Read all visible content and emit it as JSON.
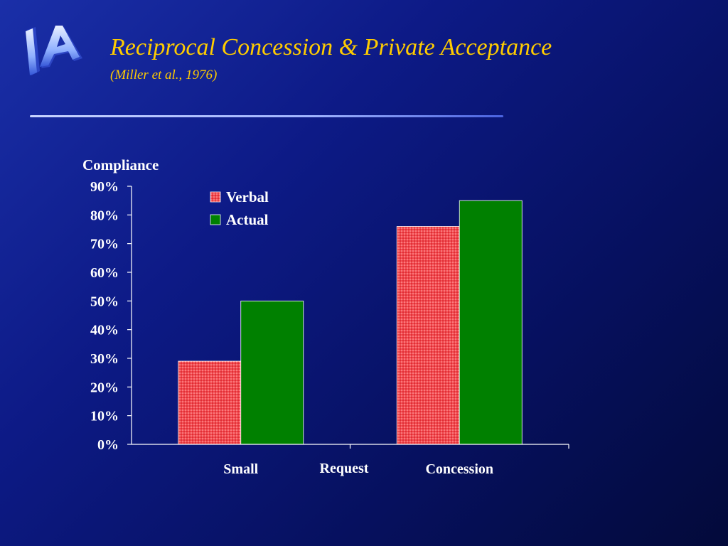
{
  "slide": {
    "title": "Reciprocal Concession & Private Acceptance",
    "subtitle": "(Miller et al., 1976)",
    "logo_text": "IA"
  },
  "colors": {
    "title": "#ffcc00",
    "verbal": "#e8232a",
    "actual": "#008000",
    "axis": "#ffffff"
  },
  "chart_data": {
    "type": "bar",
    "ylabel": "Compliance",
    "xlabel": "Request",
    "categories": [
      "Small",
      "Concession"
    ],
    "series": [
      {
        "name": "Verbal",
        "values": [
          29,
          76
        ]
      },
      {
        "name": "Actual",
        "values": [
          50,
          85
        ]
      }
    ],
    "ylim": [
      0,
      90
    ],
    "yticks": [
      "0%",
      "10%",
      "20%",
      "30%",
      "40%",
      "50%",
      "60%",
      "70%",
      "80%",
      "90%"
    ],
    "legend_position": "top-left inside plot",
    "grid": false
  }
}
